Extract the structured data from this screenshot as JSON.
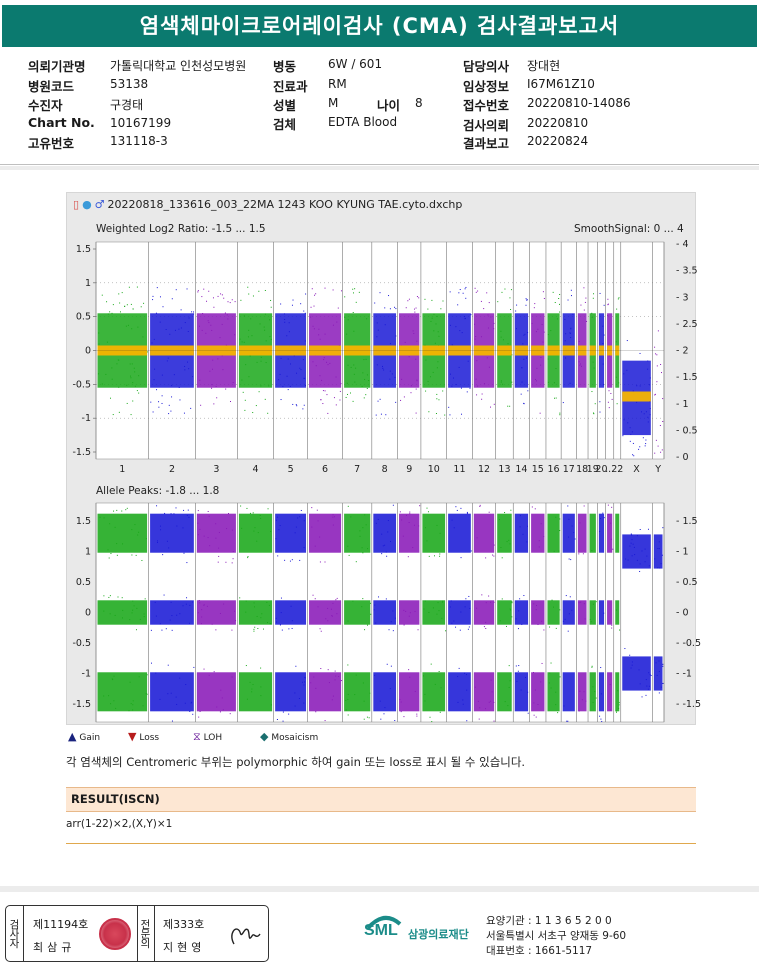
{
  "title": "염색체마이크로어레이검사 (CMA) 검사결과보고서",
  "info": {
    "col1": [
      {
        "label": "의뢰기관명",
        "value": "가톨릭대학교 인천성모병원"
      },
      {
        "label": "병원코드",
        "value": "53138"
      },
      {
        "label": "수진자",
        "value": "구경태"
      },
      {
        "label": "Chart No.",
        "value": "10167199"
      },
      {
        "label": "고유번호",
        "value": "131118-3"
      }
    ],
    "col2": [
      {
        "label": "병동",
        "value": "6W / 601"
      },
      {
        "label": "진료과",
        "value": "RM"
      },
      {
        "label": "성별",
        "value": "M"
      },
      {
        "label": "검체",
        "value": "EDTA Blood"
      }
    ],
    "age": {
      "label": "나이",
      "value": "8"
    },
    "col3": [
      {
        "label": "담당의사",
        "value": "장대현"
      },
      {
        "label": "임상정보",
        "value": "I67M61Z10"
      },
      {
        "label": "접수번호",
        "value": "20220810-14086"
      },
      {
        "label": "검사의뢰",
        "value": "20220810"
      },
      {
        "label": "결과보고",
        "value": "20220824"
      }
    ]
  },
  "plot": {
    "file_title": "20220818_133616_003_22MA 1243 KOO KYUNG TAE.cyto.dxchp",
    "top_panel_label": "Weighted Log2 Ratio: -1.5 ... 1.5",
    "smooth_label": "SmoothSignal: 0 ... 4",
    "bottom_panel_label": "Allele Peaks: -1.8 ... 1.8",
    "top_left_ticks": [
      "1.5",
      "1",
      "0.5",
      "0",
      "-0.5",
      "-1",
      "-1.5"
    ],
    "top_right_ticks": [
      "4",
      "3.5",
      "3",
      "2.5",
      "2",
      "1.5",
      "1",
      "0.5",
      "0"
    ],
    "bottom_left_ticks": [
      "1.5",
      "1",
      "0.5",
      "0",
      "-0.5",
      "-1",
      "-1.5"
    ],
    "bottom_right_ticks": [
      "1.5",
      "1",
      "0.5",
      "0",
      "-0.5",
      "-1",
      "-1.5"
    ],
    "chromosomes": [
      "1",
      "2",
      "3",
      "4",
      "5",
      "6",
      "7",
      "8",
      "9",
      "10",
      "11",
      "12",
      "13",
      "14",
      "15",
      "16",
      "17",
      "18",
      "19",
      "20",
      "...",
      "22",
      "X",
      "Y"
    ],
    "colors": {
      "green": "#1aa81a",
      "blue": "#1a1ad6",
      "purple": "#8a1ab8",
      "orange": "#f5b400",
      "panel_bg": "#ffffff"
    }
  },
  "legend": [
    {
      "icon": "gain-triangle-icon",
      "label": "Gain",
      "color": "#1a237e"
    },
    {
      "icon": "loss-triangle-icon",
      "label": "Loss",
      "color": "#b71c1c"
    },
    {
      "icon": "loh-icon",
      "label": "LOH",
      "color": "#6a1b9a"
    },
    {
      "icon": "mosaicism-icon",
      "label": "Mosaicism",
      "color": "#1b6f6f"
    }
  ],
  "note": "각 염색체의 Centromeric 부위는 polymorphic 하여 gain 또는 loss로 표시 될 수 있습니다.",
  "result": {
    "header": "RESULT(ISCN)",
    "value": "arr(1-22)×2,(X,Y)×1"
  },
  "sign": {
    "inspector_label": "검사자",
    "inspector_no": "제11194호",
    "inspector_name": "최삼규",
    "specialist_label": "전문의",
    "specialist_no": "제333호",
    "specialist_name": "지현영"
  },
  "org": {
    "logo": "SML",
    "name": "삼광의료재단",
    "lines": [
      "요양기관 : 1 1 3 6 5 2 0 0",
      "서울특별시 서초구 양재동 9-60",
      "대표번호 : 1661-5117"
    ]
  }
}
